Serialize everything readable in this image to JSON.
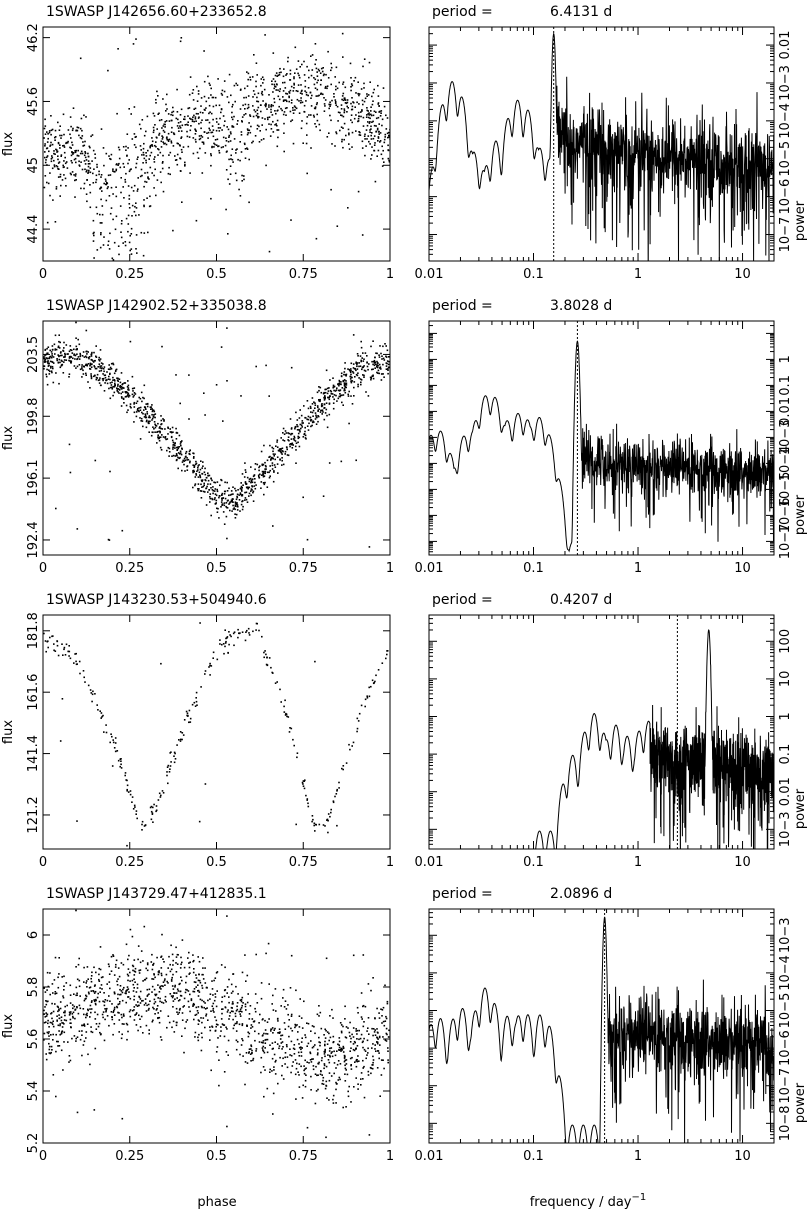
{
  "figure": {
    "phase_label": "phase",
    "freq_label_prefix": "frequency / day",
    "freq_label_exp": "−1",
    "flux_label": "flux",
    "power_label": "power",
    "period_prefix": "period ="
  },
  "chart_data": [
    {
      "type": "scatter",
      "title": "1SWASP J142656.60+233652.8",
      "xlabel": "phase",
      "ylabel": "flux",
      "xlim": [
        0,
        1
      ],
      "ylim": [
        44.1,
        46.3
      ],
      "xticks": [
        0,
        0.25,
        0.5,
        0.75,
        1
      ],
      "xtick_labels": [
        "0",
        "0.25",
        "0.5",
        "0.75",
        "1"
      ],
      "yticks": [
        44.4,
        45,
        45.6,
        46.2
      ],
      "ytick_labels": [
        "44.4",
        "45",
        "45.6",
        "46.2"
      ],
      "trend": [
        [
          0,
          45.15
        ],
        [
          0.1,
          45.05
        ],
        [
          0.2,
          44.9
        ],
        [
          0.3,
          45.15
        ],
        [
          0.45,
          45.4
        ],
        [
          0.55,
          45.45
        ],
        [
          0.7,
          45.65
        ],
        [
          0.8,
          45.7
        ],
        [
          0.9,
          45.5
        ],
        [
          1,
          45.3
        ]
      ],
      "dips": [
        [
          0.2,
          0.02,
          0.9
        ],
        [
          0.28,
          0.01,
          0.7
        ],
        [
          0.55,
          0.01,
          0.6
        ]
      ],
      "scatter": 0.35,
      "n_points": 1400
    },
    {
      "type": "line",
      "title": "period =",
      "period_value": "6.4131 d",
      "xlabel": "frequency / day−1",
      "ylabel": "power",
      "xscale": "log",
      "yscale": "log",
      "xlim": [
        0.01,
        20
      ],
      "ylim": [
        2e-08,
        0.03
      ],
      "xticks": [
        0.01,
        0.1,
        1,
        10
      ],
      "xtick_labels": [
        "0.01",
        "0.1",
        "1",
        "10"
      ],
      "yticks": [
        1e-07,
        1e-06,
        1e-05,
        0.0001,
        0.001,
        0.01
      ],
      "ytick_labels": [
        "10−7",
        "10−6",
        "10−5",
        "10−4",
        "10−3",
        "0.01"
      ],
      "peak_freq": 0.156,
      "peak_power": 0.02,
      "low_freq_lobes": [
        [
          0.017,
          0.0011
        ],
        [
          0.027,
          1.5e-05
        ],
        [
          0.045,
          3e-05
        ],
        [
          0.07,
          0.00035
        ],
        [
          0.08,
          0.00025
        ],
        [
          0.12,
          2e-05
        ]
      ],
      "noise_start": 0.16,
      "noise_level": 3e-05,
      "noise_decay": 4e-06,
      "f_start": 0.01,
      "period_marker": 0.156
    },
    {
      "type": "scatter",
      "title": "1SWASP J142902.52+335038.8",
      "xlabel": "phase",
      "ylabel": "flux",
      "xlim": [
        0,
        1
      ],
      "ylim": [
        191.5,
        205.5
      ],
      "xticks": [
        0,
        0.25,
        0.5,
        0.75,
        1
      ],
      "xtick_labels": [
        "0",
        "0.25",
        "0.5",
        "0.75",
        "1"
      ],
      "yticks": [
        192.4,
        196.1,
        199.8,
        203.5
      ],
      "ytick_labels": [
        "192.4",
        "196.1",
        "199.8",
        "203.5"
      ],
      "trend": [
        [
          0,
          203
        ],
        [
          0.1,
          203.5
        ],
        [
          0.2,
          202
        ],
        [
          0.3,
          200
        ],
        [
          0.4,
          197.5
        ],
        [
          0.5,
          195
        ],
        [
          0.55,
          194.5
        ],
        [
          0.6,
          196
        ],
        [
          0.7,
          198
        ],
        [
          0.8,
          200.5
        ],
        [
          0.9,
          202.5
        ],
        [
          1,
          203.2
        ]
      ],
      "dips": [],
      "scatter": 1.0,
      "n_points": 1400
    },
    {
      "type": "line",
      "title": "period =",
      "period_value": "3.8028 d",
      "xlabel": "frequency / day−1",
      "ylabel": "power",
      "xscale": "log",
      "yscale": "log",
      "xlim": [
        0.01,
        20
      ],
      "ylim": [
        3e-08,
        30
      ],
      "xticks": [
        0.01,
        0.1,
        1,
        10
      ],
      "xtick_labels": [
        "0.01",
        "0.1",
        "1",
        "10"
      ],
      "yticks": [
        1e-07,
        1e-06,
        1e-05,
        0.0001,
        0.001,
        0.01,
        0.1,
        1
      ],
      "ytick_labels": [
        "10−7",
        "10−6",
        "10−5",
        "10−4",
        "10−3",
        "0.01",
        "0.1",
        "1"
      ],
      "peak_freq": 0.263,
      "peak_power": 5,
      "low_freq_lobes": [
        [
          0.012,
          0.002
        ],
        [
          0.025,
          0.002
        ],
        [
          0.038,
          0.05
        ],
        [
          0.06,
          0.005
        ],
        [
          0.075,
          0.009
        ],
        [
          0.11,
          0.006
        ]
      ],
      "noise_start": 0.28,
      "noise_level": 0.00015,
      "noise_decay": 3e-05,
      "f_start": 0.01,
      "period_marker": 0.263
    },
    {
      "type": "scatter",
      "title": "1SWASP J143230.53+504940.6",
      "xlabel": "phase",
      "ylabel": "flux",
      "xlim": [
        0,
        1
      ],
      "ylim": [
        110,
        187
      ],
      "xticks": [
        0,
        0.25,
        0.5,
        0.75,
        1
      ],
      "xtick_labels": [
        "0",
        "0.25",
        "0.5",
        "0.75",
        "1"
      ],
      "yticks": [
        121.2,
        141.4,
        161.6,
        181.8
      ],
      "ytick_labels": [
        "121.2",
        "141.4",
        "161.6",
        "181.8"
      ],
      "trend": [
        [
          0,
          180
        ],
        [
          0.1,
          172
        ],
        [
          0.2,
          146
        ],
        [
          0.28,
          117
        ],
        [
          0.33,
          125
        ],
        [
          0.4,
          150
        ],
        [
          0.5,
          176
        ],
        [
          0.58,
          182
        ],
        [
          0.62,
          180
        ],
        [
          0.7,
          155
        ],
        [
          0.78,
          117
        ],
        [
          0.82,
          120
        ],
        [
          0.9,
          150
        ],
        [
          1,
          179
        ]
      ],
      "dips": [],
      "scatter": 3.0,
      "n_points": 320
    },
    {
      "type": "line",
      "title": "period =",
      "period_value": "0.4207 d",
      "xlabel": "frequency / day−1",
      "ylabel": "power",
      "xscale": "log",
      "yscale": "log",
      "xlim": [
        0.01,
        20
      ],
      "ylim": [
        0.0003,
        500
      ],
      "xticks": [
        0.01,
        0.1,
        1,
        10
      ],
      "xtick_labels": [
        "0.01",
        "0.1",
        "1",
        "10"
      ],
      "yticks": [
        0.001,
        0.01,
        0.1,
        1,
        10,
        100
      ],
      "ytick_labels": [
        "10−3",
        "0.01",
        "0.1",
        "1",
        "10",
        "100"
      ],
      "peak_freq": 4.75,
      "peak_power": 200,
      "low_freq_lobes": [
        [
          0.25,
          0.1
        ],
        [
          0.38,
          1.2
        ],
        [
          0.6,
          0.6
        ],
        [
          0.8,
          0.3
        ],
        [
          1.2,
          0.8
        ]
      ],
      "noise_start": 1.3,
      "noise_level": 0.08,
      "noise_decay": 0.02,
      "f_start": 0.1,
      "period_marker": 2.38
    },
    {
      "type": "scatter",
      "title": "1SWASP J143729.47+412835.1",
      "xlabel": "phase",
      "ylabel": "flux",
      "xlim": [
        0,
        1
      ],
      "ylim": [
        5.2,
        6.1
      ],
      "xticks": [
        0,
        0.25,
        0.5,
        0.75,
        1
      ],
      "xtick_labels": [
        "0",
        "0.25",
        "0.5",
        "0.75",
        "1"
      ],
      "yticks": [
        5.2,
        5.4,
        5.6,
        5.8,
        6
      ],
      "ytick_labels": [
        "5.2",
        "5.4",
        "5.6",
        "5.8",
        "6"
      ],
      "trend": [
        [
          0,
          5.65
        ],
        [
          0.15,
          5.75
        ],
        [
          0.3,
          5.8
        ],
        [
          0.45,
          5.75
        ],
        [
          0.55,
          5.68
        ],
        [
          0.7,
          5.58
        ],
        [
          0.8,
          5.52
        ],
        [
          0.9,
          5.55
        ],
        [
          1,
          5.65
        ]
      ],
      "dips": [],
      "scatter": 0.16,
      "n_points": 1400
    },
    {
      "type": "line",
      "title": "period =",
      "period_value": "2.0896 d",
      "xlabel": "frequency / day−1",
      "ylabel": "power",
      "xscale": "log",
      "yscale": "log",
      "xlim": [
        0.01,
        20
      ],
      "ylim": [
        3e-09,
        0.005
      ],
      "xticks": [
        0.01,
        0.1,
        1,
        10
      ],
      "xtick_labels": [
        "0.01",
        "0.1",
        "1",
        "10"
      ],
      "yticks": [
        1e-08,
        1e-07,
        1e-06,
        1e-05,
        0.0001,
        0.001
      ],
      "ytick_labels": [
        "10−8",
        "10−7",
        "10−6",
        "10−5",
        "10−4",
        "10−3"
      ],
      "peak_freq": 0.479,
      "peak_power": 0.003,
      "low_freq_lobes": [
        [
          0.012,
          7e-06
        ],
        [
          0.02,
          1.2e-05
        ],
        [
          0.035,
          4e-05
        ],
        [
          0.06,
          8e-06
        ],
        [
          0.08,
          1e-05
        ],
        [
          0.12,
          8e-06
        ]
      ],
      "noise_start": 0.5,
      "noise_level": 3e-06,
      "noise_decay": 5e-07,
      "f_start": 0.01,
      "period_marker": 0.479
    }
  ]
}
